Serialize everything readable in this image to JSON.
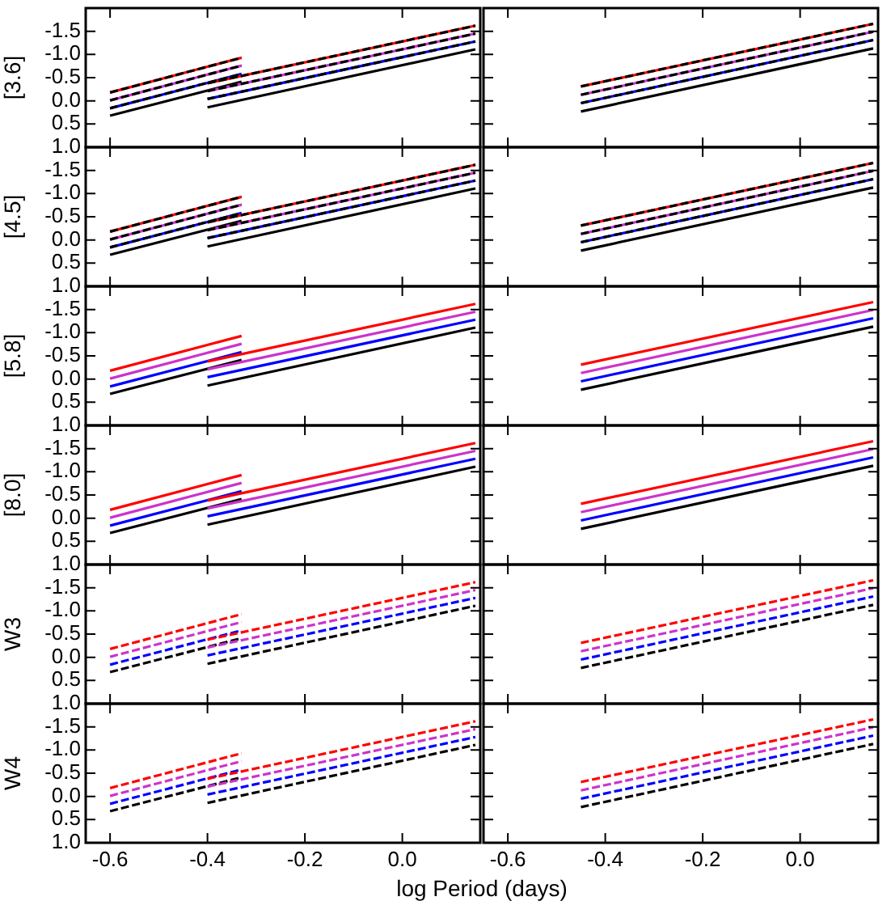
{
  "chart_data": [
    {
      "type": "line",
      "ylabel": "[3.6]",
      "xlim": [
        -0.65,
        0.16
      ],
      "ylim": [
        1.0,
        -2.0
      ],
      "xticks": [
        -0.6,
        -0.4,
        -0.2,
        0
      ],
      "yticks": [
        {
          "value": -1.5,
          "label": "-1.5"
        },
        {
          "value": -1.0,
          "label": "-1.0"
        },
        {
          "value": -0.5,
          "label": "-0.5"
        },
        {
          "value": 0,
          "label": "0.0"
        },
        {
          "value": 0.5,
          "label": "0.5"
        },
        {
          "value": 1.0,
          "label": "1.0"
        }
      ],
      "tick_labels": "y",
      "series": [
        {
          "x": [
            -0.6,
            -0.33
          ],
          "color": "#ff0000",
          "values": [
            -0.18,
            -0.93
          ],
          "line_style": "solid"
        },
        {
          "x": [
            -0.6,
            -0.33
          ],
          "color": "#cc33cc",
          "values": [
            -0.01,
            -0.76
          ],
          "line_style": "solid"
        },
        {
          "x": [
            -0.6,
            -0.33
          ],
          "color": "#0000ff",
          "values": [
            0.16,
            -0.58
          ],
          "line_style": "solid"
        },
        {
          "x": [
            -0.6,
            -0.33
          ],
          "color": "#000000",
          "values": [
            0.32,
            -0.41
          ],
          "line_style": "solid"
        },
        {
          "x": [
            -0.4,
            0.15
          ],
          "color": "#ff0000",
          "values": [
            -0.38,
            -1.62
          ],
          "line_style": "solid"
        },
        {
          "x": [
            -0.4,
            0.15
          ],
          "color": "#cc33cc",
          "values": [
            -0.21,
            -1.45
          ],
          "line_style": "solid"
        },
        {
          "x": [
            -0.4,
            0.15
          ],
          "color": "#0000ff",
          "values": [
            -0.04,
            -1.28
          ],
          "line_style": "solid"
        },
        {
          "x": [
            -0.4,
            0.15
          ],
          "color": "#000000",
          "values": [
            0.14,
            -1.11
          ],
          "line_style": "solid"
        },
        {
          "x": [
            -0.6,
            -0.33
          ],
          "color": "#000000",
          "values": [
            -0.18,
            -0.93
          ],
          "line_style": "dashed"
        },
        {
          "x": [
            -0.6,
            -0.33
          ],
          "color": "#000000",
          "values": [
            -0.01,
            -0.76
          ],
          "line_style": "dashed"
        },
        {
          "x": [
            -0.6,
            -0.33
          ],
          "color": "#000000",
          "values": [
            0.16,
            -0.58
          ],
          "line_style": "dashed"
        },
        {
          "x": [
            -0.4,
            0.15
          ],
          "color": "#000000",
          "values": [
            -0.38,
            -1.62
          ],
          "line_style": "dashed"
        },
        {
          "x": [
            -0.4,
            0.15
          ],
          "color": "#000000",
          "values": [
            -0.21,
            -1.45
          ],
          "line_style": "dashed"
        },
        {
          "x": [
            -0.4,
            0.15
          ],
          "color": "#000000",
          "values": [
            -0.04,
            -1.28
          ],
          "line_style": "dashed"
        }
      ]
    },
    {
      "type": "line",
      "xlim": [
        -0.65,
        0.16
      ],
      "ylim": [
        1.0,
        -2.0
      ],
      "xticks": [
        -0.6,
        -0.4,
        -0.2,
        0
      ],
      "yticks": [
        -1.5,
        -1.0,
        -0.5,
        0,
        0.5,
        1.0
      ],
      "tick_labels": false,
      "series": [
        {
          "x": [
            -0.45,
            0.15
          ],
          "color": "#ff0000",
          "values": [
            -0.31,
            -1.66
          ],
          "line_style": "solid"
        },
        {
          "x": [
            -0.45,
            0.15
          ],
          "color": "#cc33cc",
          "values": [
            -0.13,
            -1.49
          ],
          "line_style": "solid"
        },
        {
          "x": [
            -0.45,
            0.15
          ],
          "color": "#0000ff",
          "values": [
            0.05,
            -1.31
          ],
          "line_style": "solid"
        },
        {
          "x": [
            -0.45,
            0.15
          ],
          "color": "#000000",
          "values": [
            0.23,
            -1.13
          ],
          "line_style": "solid"
        },
        {
          "x": [
            -0.45,
            0.15
          ],
          "color": "#000000",
          "values": [
            -0.31,
            -1.66
          ],
          "line_style": "dashed"
        },
        {
          "x": [
            -0.45,
            0.15
          ],
          "color": "#000000",
          "values": [
            -0.13,
            -1.49
          ],
          "line_style": "dashed"
        },
        {
          "x": [
            -0.45,
            0.15
          ],
          "color": "#000000",
          "values": [
            0.05,
            -1.31
          ],
          "line_style": "dashed"
        }
      ]
    },
    {
      "type": "line",
      "ylabel": "[4.5]",
      "xlim": [
        -0.65,
        0.16
      ],
      "ylim": [
        1.0,
        -2.0
      ],
      "xticks": [
        -0.6,
        -0.4,
        -0.2,
        0
      ],
      "yticks": [
        {
          "value": -1.5,
          "label": "-1.5"
        },
        {
          "value": -1.0,
          "label": "-1.0"
        },
        {
          "value": -0.5,
          "label": "-0.5"
        },
        {
          "value": 0,
          "label": "0.0"
        },
        {
          "value": 0.5,
          "label": "0.5"
        },
        {
          "value": 1.0,
          "label": "1.0"
        }
      ],
      "tick_labels": "y",
      "series": [
        {
          "x": [
            -0.6,
            -0.33
          ],
          "color": "#ff0000",
          "values": [
            -0.18,
            -0.93
          ],
          "line_style": "solid"
        },
        {
          "x": [
            -0.6,
            -0.33
          ],
          "color": "#cc33cc",
          "values": [
            -0.01,
            -0.76
          ],
          "line_style": "solid"
        },
        {
          "x": [
            -0.6,
            -0.33
          ],
          "color": "#0000ff",
          "values": [
            0.16,
            -0.58
          ],
          "line_style": "solid"
        },
        {
          "x": [
            -0.6,
            -0.33
          ],
          "color": "#000000",
          "values": [
            0.32,
            -0.41
          ],
          "line_style": "solid"
        },
        {
          "x": [
            -0.4,
            0.15
          ],
          "color": "#ff0000",
          "values": [
            -0.38,
            -1.62
          ],
          "line_style": "solid"
        },
        {
          "x": [
            -0.4,
            0.15
          ],
          "color": "#cc33cc",
          "values": [
            -0.21,
            -1.45
          ],
          "line_style": "solid"
        },
        {
          "x": [
            -0.4,
            0.15
          ],
          "color": "#0000ff",
          "values": [
            -0.04,
            -1.28
          ],
          "line_style": "solid"
        },
        {
          "x": [
            -0.4,
            0.15
          ],
          "color": "#000000",
          "values": [
            0.14,
            -1.11
          ],
          "line_style": "solid"
        },
        {
          "x": [
            -0.6,
            -0.33
          ],
          "color": "#000000",
          "values": [
            -0.18,
            -0.93
          ],
          "line_style": "dashed"
        },
        {
          "x": [
            -0.6,
            -0.33
          ],
          "color": "#000000",
          "values": [
            -0.01,
            -0.76
          ],
          "line_style": "dashed"
        },
        {
          "x": [
            -0.6,
            -0.33
          ],
          "color": "#000000",
          "values": [
            0.16,
            -0.58
          ],
          "line_style": "dashed"
        },
        {
          "x": [
            -0.4,
            0.15
          ],
          "color": "#000000",
          "values": [
            -0.38,
            -1.62
          ],
          "line_style": "dashed"
        },
        {
          "x": [
            -0.4,
            0.15
          ],
          "color": "#000000",
          "values": [
            -0.21,
            -1.45
          ],
          "line_style": "dashed"
        },
        {
          "x": [
            -0.4,
            0.15
          ],
          "color": "#000000",
          "values": [
            -0.04,
            -1.28
          ],
          "line_style": "dashed"
        }
      ]
    },
    {
      "type": "line",
      "xlim": [
        -0.65,
        0.16
      ],
      "ylim": [
        1.0,
        -2.0
      ],
      "xticks": [
        -0.6,
        -0.4,
        -0.2,
        0
      ],
      "yticks": [
        -1.5,
        -1.0,
        -0.5,
        0,
        0.5,
        1.0
      ],
      "tick_labels": false,
      "series": [
        {
          "x": [
            -0.45,
            0.15
          ],
          "color": "#ff0000",
          "values": [
            -0.31,
            -1.66
          ],
          "line_style": "solid"
        },
        {
          "x": [
            -0.45,
            0.15
          ],
          "color": "#cc33cc",
          "values": [
            -0.13,
            -1.49
          ],
          "line_style": "solid"
        },
        {
          "x": [
            -0.45,
            0.15
          ],
          "color": "#0000ff",
          "values": [
            0.05,
            -1.31
          ],
          "line_style": "solid"
        },
        {
          "x": [
            -0.45,
            0.15
          ],
          "color": "#000000",
          "values": [
            0.23,
            -1.13
          ],
          "line_style": "solid"
        },
        {
          "x": [
            -0.45,
            0.15
          ],
          "color": "#000000",
          "values": [
            -0.31,
            -1.66
          ],
          "line_style": "dashed"
        },
        {
          "x": [
            -0.45,
            0.15
          ],
          "color": "#000000",
          "values": [
            -0.13,
            -1.49
          ],
          "line_style": "dashed"
        },
        {
          "x": [
            -0.45,
            0.15
          ],
          "color": "#000000",
          "values": [
            0.05,
            -1.31
          ],
          "line_style": "dashed"
        }
      ]
    },
    {
      "type": "line",
      "ylabel": "[5.8]",
      "xlim": [
        -0.65,
        0.16
      ],
      "ylim": [
        1.0,
        -2.0
      ],
      "xticks": [
        -0.6,
        -0.4,
        -0.2,
        0
      ],
      "yticks": [
        {
          "value": -1.5,
          "label": "-1.5"
        },
        {
          "value": -1.0,
          "label": "-1.0"
        },
        {
          "value": -0.5,
          "label": "-0.5"
        },
        {
          "value": 0,
          "label": "0.0"
        },
        {
          "value": 0.5,
          "label": "0.5"
        },
        {
          "value": 1.0,
          "label": "1.0"
        }
      ],
      "tick_labels": "y",
      "series": [
        {
          "x": [
            -0.6,
            -0.33
          ],
          "color": "#ff0000",
          "values": [
            -0.18,
            -0.93
          ],
          "line_style": "solid"
        },
        {
          "x": [
            -0.6,
            -0.33
          ],
          "color": "#cc33cc",
          "values": [
            -0.01,
            -0.76
          ],
          "line_style": "solid"
        },
        {
          "x": [
            -0.6,
            -0.33
          ],
          "color": "#0000ff",
          "values": [
            0.16,
            -0.58
          ],
          "line_style": "solid"
        },
        {
          "x": [
            -0.6,
            -0.33
          ],
          "color": "#000000",
          "values": [
            0.32,
            -0.41
          ],
          "line_style": "solid"
        },
        {
          "x": [
            -0.4,
            0.15
          ],
          "color": "#ff0000",
          "values": [
            -0.38,
            -1.62
          ],
          "line_style": "solid"
        },
        {
          "x": [
            -0.4,
            0.15
          ],
          "color": "#cc33cc",
          "values": [
            -0.21,
            -1.45
          ],
          "line_style": "solid"
        },
        {
          "x": [
            -0.4,
            0.15
          ],
          "color": "#0000ff",
          "values": [
            -0.04,
            -1.28
          ],
          "line_style": "solid"
        },
        {
          "x": [
            -0.4,
            0.15
          ],
          "color": "#000000",
          "values": [
            0.14,
            -1.11
          ],
          "line_style": "solid"
        }
      ]
    },
    {
      "type": "line",
      "xlim": [
        -0.65,
        0.16
      ],
      "ylim": [
        1.0,
        -2.0
      ],
      "xticks": [
        -0.6,
        -0.4,
        -0.2,
        0
      ],
      "yticks": [
        -1.5,
        -1.0,
        -0.5,
        0,
        0.5,
        1.0
      ],
      "tick_labels": false,
      "series": [
        {
          "x": [
            -0.45,
            0.15
          ],
          "color": "#ff0000",
          "values": [
            -0.31,
            -1.66
          ],
          "line_style": "solid"
        },
        {
          "x": [
            -0.45,
            0.15
          ],
          "color": "#cc33cc",
          "values": [
            -0.13,
            -1.49
          ],
          "line_style": "solid"
        },
        {
          "x": [
            -0.45,
            0.15
          ],
          "color": "#0000ff",
          "values": [
            0.05,
            -1.31
          ],
          "line_style": "solid"
        },
        {
          "x": [
            -0.45,
            0.15
          ],
          "color": "#000000",
          "values": [
            0.23,
            -1.13
          ],
          "line_style": "solid"
        }
      ]
    },
    {
      "type": "line",
      "ylabel": "[8.0]",
      "xlim": [
        -0.65,
        0.16
      ],
      "ylim": [
        1.0,
        -2.0
      ],
      "xticks": [
        -0.6,
        -0.4,
        -0.2,
        0
      ],
      "yticks": [
        {
          "value": -1.5,
          "label": "-1.5"
        },
        {
          "value": -1.0,
          "label": "-1.0"
        },
        {
          "value": -0.5,
          "label": "-0.5"
        },
        {
          "value": 0,
          "label": "0.0"
        },
        {
          "value": 0.5,
          "label": "0.5"
        },
        {
          "value": 1.0,
          "label": "1.0"
        }
      ],
      "tick_labels": "y",
      "series": [
        {
          "x": [
            -0.6,
            -0.33
          ],
          "color": "#ff0000",
          "values": [
            -0.18,
            -0.93
          ],
          "line_style": "solid"
        },
        {
          "x": [
            -0.6,
            -0.33
          ],
          "color": "#cc33cc",
          "values": [
            -0.01,
            -0.76
          ],
          "line_style": "solid"
        },
        {
          "x": [
            -0.6,
            -0.33
          ],
          "color": "#0000ff",
          "values": [
            0.16,
            -0.58
          ],
          "line_style": "solid"
        },
        {
          "x": [
            -0.6,
            -0.33
          ],
          "color": "#000000",
          "values": [
            0.32,
            -0.41
          ],
          "line_style": "solid"
        },
        {
          "x": [
            -0.4,
            0.15
          ],
          "color": "#ff0000",
          "values": [
            -0.38,
            -1.62
          ],
          "line_style": "solid"
        },
        {
          "x": [
            -0.4,
            0.15
          ],
          "color": "#cc33cc",
          "values": [
            -0.21,
            -1.45
          ],
          "line_style": "solid"
        },
        {
          "x": [
            -0.4,
            0.15
          ],
          "color": "#0000ff",
          "values": [
            -0.04,
            -1.28
          ],
          "line_style": "solid"
        },
        {
          "x": [
            -0.4,
            0.15
          ],
          "color": "#000000",
          "values": [
            0.14,
            -1.11
          ],
          "line_style": "solid"
        }
      ]
    },
    {
      "type": "line",
      "xlim": [
        -0.65,
        0.16
      ],
      "ylim": [
        1.0,
        -2.0
      ],
      "xticks": [
        -0.6,
        -0.4,
        -0.2,
        0
      ],
      "yticks": [
        -1.5,
        -1.0,
        -0.5,
        0,
        0.5,
        1.0
      ],
      "tick_labels": false,
      "series": [
        {
          "x": [
            -0.45,
            0.15
          ],
          "color": "#ff0000",
          "values": [
            -0.31,
            -1.66
          ],
          "line_style": "solid"
        },
        {
          "x": [
            -0.45,
            0.15
          ],
          "color": "#cc33cc",
          "values": [
            -0.13,
            -1.49
          ],
          "line_style": "solid"
        },
        {
          "x": [
            -0.45,
            0.15
          ],
          "color": "#0000ff",
          "values": [
            0.05,
            -1.31
          ],
          "line_style": "solid"
        },
        {
          "x": [
            -0.45,
            0.15
          ],
          "color": "#000000",
          "values": [
            0.23,
            -1.13
          ],
          "line_style": "solid"
        }
      ]
    },
    {
      "type": "line",
      "ylabel": "W3",
      "xlim": [
        -0.65,
        0.16
      ],
      "ylim": [
        1.0,
        -2.0
      ],
      "xticks": [
        -0.6,
        -0.4,
        -0.2,
        0
      ],
      "yticks": [
        {
          "value": -1.5,
          "label": "-1.5"
        },
        {
          "value": -1.0,
          "label": "-1.0"
        },
        {
          "value": -0.5,
          "label": "-0.5"
        },
        {
          "value": 0,
          "label": "0.0"
        },
        {
          "value": 0.5,
          "label": "0.5"
        },
        {
          "value": 1.0,
          "label": "1.0"
        }
      ],
      "tick_labels": "y",
      "series": [
        {
          "x": [
            -0.6,
            -0.33
          ],
          "color": "#ff0000",
          "values": [
            -0.18,
            -0.93
          ],
          "line_style": "dashed"
        },
        {
          "x": [
            -0.6,
            -0.33
          ],
          "color": "#cc33cc",
          "values": [
            -0.01,
            -0.76
          ],
          "line_style": "dashed"
        },
        {
          "x": [
            -0.6,
            -0.33
          ],
          "color": "#0000ff",
          "values": [
            0.16,
            -0.58
          ],
          "line_style": "dashed"
        },
        {
          "x": [
            -0.6,
            -0.33
          ],
          "color": "#000000",
          "values": [
            0.32,
            -0.41
          ],
          "line_style": "dashed"
        },
        {
          "x": [
            -0.4,
            0.15
          ],
          "color": "#ff0000",
          "values": [
            -0.38,
            -1.62
          ],
          "line_style": "dashed"
        },
        {
          "x": [
            -0.4,
            0.15
          ],
          "color": "#cc33cc",
          "values": [
            -0.21,
            -1.45
          ],
          "line_style": "dashed"
        },
        {
          "x": [
            -0.4,
            0.15
          ],
          "color": "#0000ff",
          "values": [
            -0.04,
            -1.28
          ],
          "line_style": "dashed"
        },
        {
          "x": [
            -0.4,
            0.15
          ],
          "color": "#000000",
          "values": [
            0.14,
            -1.11
          ],
          "line_style": "dashed"
        }
      ]
    },
    {
      "type": "line",
      "xlim": [
        -0.65,
        0.16
      ],
      "ylim": [
        1.0,
        -2.0
      ],
      "xticks": [
        -0.6,
        -0.4,
        -0.2,
        0
      ],
      "yticks": [
        -1.5,
        -1.0,
        -0.5,
        0,
        0.5,
        1.0
      ],
      "tick_labels": false,
      "series": [
        {
          "x": [
            -0.45,
            0.15
          ],
          "color": "#ff0000",
          "values": [
            -0.31,
            -1.66
          ],
          "line_style": "dashed"
        },
        {
          "x": [
            -0.45,
            0.15
          ],
          "color": "#cc33cc",
          "values": [
            -0.13,
            -1.49
          ],
          "line_style": "dashed"
        },
        {
          "x": [
            -0.45,
            0.15
          ],
          "color": "#0000ff",
          "values": [
            0.05,
            -1.31
          ],
          "line_style": "dashed"
        },
        {
          "x": [
            -0.45,
            0.15
          ],
          "color": "#000000",
          "values": [
            0.23,
            -1.13
          ],
          "line_style": "dashed"
        }
      ]
    },
    {
      "type": "line",
      "ylabel": "W4",
      "xlabel": "log Period (days)",
      "xlim": [
        -0.65,
        0.16
      ],
      "ylim": [
        1.0,
        -2.0
      ],
      "xticks": [
        {
          "value": -0.6,
          "label": "-0.6"
        },
        {
          "value": -0.4,
          "label": "-0.4"
        },
        {
          "value": -0.2,
          "label": "-0.2"
        },
        {
          "value": 0,
          "label": "0.0"
        }
      ],
      "yticks": [
        {
          "value": -1.5,
          "label": "-1.5"
        },
        {
          "value": -1.0,
          "label": "-1.0"
        },
        {
          "value": -0.5,
          "label": "-0.5"
        },
        {
          "value": 0,
          "label": "0.0"
        },
        {
          "value": 0.5,
          "label": "0.5"
        },
        {
          "value": 1.0,
          "label": "1.0"
        }
      ],
      "series": [
        {
          "x": [
            -0.6,
            -0.33
          ],
          "color": "#ff0000",
          "values": [
            -0.18,
            -0.93
          ],
          "line_style": "dashed"
        },
        {
          "x": [
            -0.6,
            -0.33
          ],
          "color": "#cc33cc",
          "values": [
            -0.01,
            -0.76
          ],
          "line_style": "dashed"
        },
        {
          "x": [
            -0.6,
            -0.33
          ],
          "color": "#0000ff",
          "values": [
            0.16,
            -0.58
          ],
          "line_style": "dashed"
        },
        {
          "x": [
            -0.6,
            -0.33
          ],
          "color": "#000000",
          "values": [
            0.32,
            -0.41
          ],
          "line_style": "dashed"
        },
        {
          "x": [
            -0.4,
            0.15
          ],
          "color": "#ff0000",
          "values": [
            -0.38,
            -1.62
          ],
          "line_style": "dashed"
        },
        {
          "x": [
            -0.4,
            0.15
          ],
          "color": "#cc33cc",
          "values": [
            -0.21,
            -1.45
          ],
          "line_style": "dashed"
        },
        {
          "x": [
            -0.4,
            0.15
          ],
          "color": "#0000ff",
          "values": [
            -0.04,
            -1.28
          ],
          "line_style": "dashed"
        },
        {
          "x": [
            -0.4,
            0.15
          ],
          "color": "#000000",
          "values": [
            0.14,
            -1.11
          ],
          "line_style": "dashed"
        }
      ]
    },
    {
      "type": "line",
      "xlim": [
        -0.65,
        0.16
      ],
      "ylim": [
        1.0,
        -2.0
      ],
      "xticks": [
        {
          "value": -0.6,
          "label": "-0.6"
        },
        {
          "value": -0.4,
          "label": "-0.4"
        },
        {
          "value": -0.2,
          "label": "-0.2"
        },
        {
          "value": 0,
          "label": "0.0"
        }
      ],
      "yticks": [
        -1.5,
        -1.0,
        -0.5,
        0,
        0.5,
        1.0
      ],
      "tick_labels": "x",
      "series": [
        {
          "x": [
            -0.45,
            0.15
          ],
          "color": "#ff0000",
          "values": [
            -0.31,
            -1.66
          ],
          "line_style": "dashed"
        },
        {
          "x": [
            -0.45,
            0.15
          ],
          "color": "#cc33cc",
          "values": [
            -0.13,
            -1.49
          ],
          "line_style": "dashed"
        },
        {
          "x": [
            -0.45,
            0.15
          ],
          "color": "#0000ff",
          "values": [
            0.05,
            -1.31
          ],
          "line_style": "dashed"
        },
        {
          "x": [
            -0.45,
            0.15
          ],
          "color": "#000000",
          "values": [
            0.23,
            -1.13
          ],
          "line_style": "dashed"
        }
      ]
    }
  ]
}
